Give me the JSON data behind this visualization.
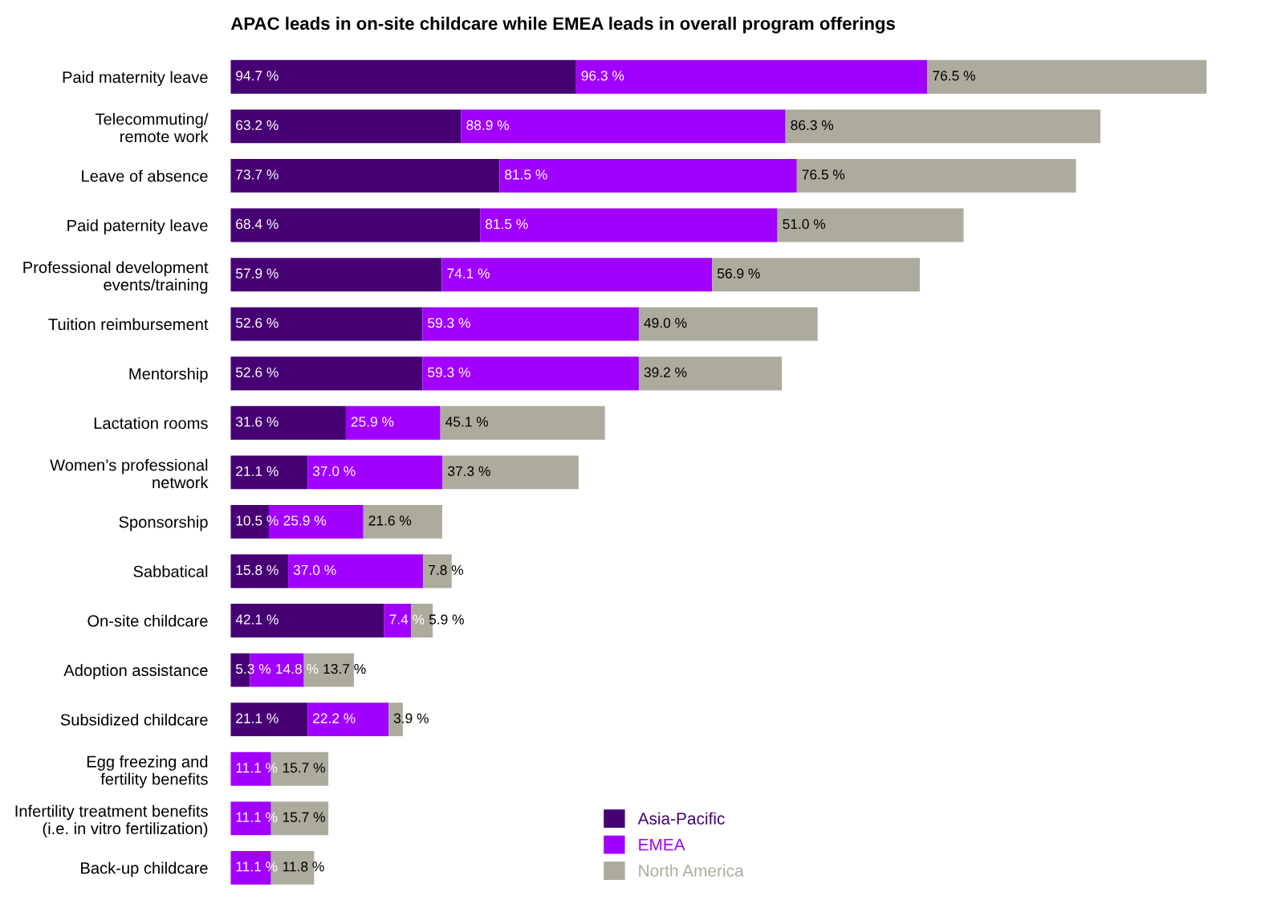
{
  "chart_data": {
    "type": "bar",
    "orientation": "horizontal",
    "stacked": true,
    "legend": "bottom",
    "title": "APAC leads in on-site childcare while EMEA leads in overall program offerings",
    "categories": [
      "Paid maternity leave",
      "Telecommuting/\nremote work",
      "Leave of absence",
      "Paid paternity leave",
      "Professional development\nevents/training",
      "Tuition reimbursement",
      "Mentorship",
      "Lactation rooms",
      "Women’s professional\nnetwork",
      "Sponsorship",
      "Sabbatical",
      "On-site childcare",
      "Adoption assistance",
      "Subsidized childcare",
      "Egg freezing and\nfertility benefits",
      "Infertility treatment benefits\n(i.e. in vitro fertilization)",
      "Back-up childcare"
    ],
    "series": [
      {
        "name": "Asia-Pacific",
        "color": "#460073",
        "values": [
          94.7,
          63.2,
          73.7,
          68.4,
          57.9,
          52.6,
          52.6,
          31.6,
          21.1,
          10.5,
          15.8,
          42.1,
          5.3,
          21.1,
          null,
          null,
          null
        ],
        "value_labels": [
          "94.7 %",
          "63.2 %",
          "73.7 %",
          "68.4 %",
          "57.9 %",
          "52.6 %",
          "52.6 %",
          "31.6 %",
          "21.1 %",
          "10.5 %",
          "15.8 %",
          "42.1 %",
          "5.3 %",
          "21.1 %",
          null,
          null,
          null
        ]
      },
      {
        "name": "EMEA",
        "color": "#a100ff",
        "values": [
          96.3,
          88.9,
          81.5,
          81.5,
          74.1,
          59.3,
          59.3,
          25.9,
          37.0,
          25.9,
          37.0,
          7.4,
          14.8,
          22.2,
          11.1,
          11.1,
          11.1
        ],
        "value_labels": [
          "96.3 %",
          "88.9 %",
          "81.5 %",
          "81.5 %",
          "74.1 %",
          "59.3 %",
          "59.3 %",
          "25.9 %",
          "37.0 %",
          "25.9 %",
          "37.0 %",
          "7.4 %",
          "14.8 %",
          "22.2 %",
          "11.1 %",
          "11.1 %",
          "11.1 %"
        ]
      },
      {
        "name": "North America",
        "color": "#acab9d",
        "values": [
          76.5,
          86.3,
          76.5,
          51.0,
          56.9,
          49.0,
          39.2,
          45.1,
          37.3,
          21.6,
          7.8,
          5.9,
          13.7,
          3.9,
          15.7,
          15.7,
          11.8
        ],
        "value_labels": [
          "76.5 %",
          "86.3 %",
          "76.5 %",
          "51.0 %",
          "56.9 %",
          "49.0 %",
          "39.2 %",
          "45.1 %",
          "37.3 %",
          "21.6 %",
          "7.8 %",
          "5.9 %",
          "13.7 %",
          "3.9 %",
          "15.7 %",
          "15.7 %",
          "11.8 %"
        ]
      }
    ]
  }
}
